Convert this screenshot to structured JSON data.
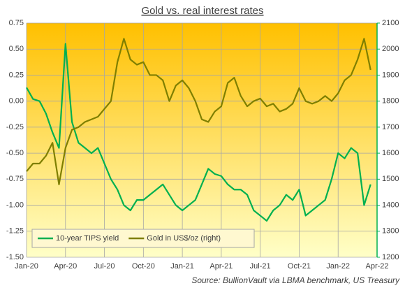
{
  "chart_data": {
    "type": "line",
    "title": "Gold vs. real interest rates",
    "source": "Source: BullionVault via LBMA benchmark, US Treasury",
    "x": [
      0,
      0.5,
      1,
      1.5,
      2,
      2.5,
      3,
      3.5,
      4,
      4.5,
      5,
      5.5,
      6,
      6.5,
      7,
      7.5,
      8,
      8.5,
      9,
      9.5,
      10,
      10.5,
      11,
      11.5,
      12,
      12.5,
      13,
      13.5,
      14,
      14.5,
      15,
      15.5,
      16,
      16.5,
      17,
      17.5,
      18,
      18.5,
      19,
      19.5,
      20,
      20.5,
      21,
      21.5,
      22,
      22.5,
      23,
      23.5,
      24,
      24.5,
      25,
      25.5,
      26,
      26.5
    ],
    "xlim": [
      0,
      27
    ],
    "xticks": [
      {
        "value": 0,
        "label": "Jan-20"
      },
      {
        "value": 3,
        "label": "Apr-20"
      },
      {
        "value": 6,
        "label": "Jul-20"
      },
      {
        "value": 9,
        "label": "Oct-20"
      },
      {
        "value": 12,
        "label": "Jan-21"
      },
      {
        "value": 15,
        "label": "Apr-21"
      },
      {
        "value": 18,
        "label": "Jul-21"
      },
      {
        "value": 21,
        "label": "Oct-21"
      },
      {
        "value": 24,
        "label": "Jan-22"
      },
      {
        "value": 27,
        "label": "Apr-22"
      }
    ],
    "ylim": [
      -1.5,
      0.75
    ],
    "yticks": [
      {
        "value": -1.5,
        "label": "-1.50"
      },
      {
        "value": -1.25,
        "label": "-1.25"
      },
      {
        "value": -1,
        "label": "-1.00"
      },
      {
        "value": -0.75,
        "label": "-0.75"
      },
      {
        "value": -0.5,
        "label": "-0.50"
      },
      {
        "value": -0.25,
        "label": "-0.25"
      },
      {
        "value": 0,
        "label": "0.00"
      },
      {
        "value": 0.25,
        "label": "0.25"
      },
      {
        "value": 0.5,
        "label": "0.50"
      },
      {
        "value": 0.75,
        "label": "0.75"
      }
    ],
    "y2lim": [
      1200,
      2100
    ],
    "y2ticks": [
      1200,
      1300,
      1400,
      1500,
      1600,
      1700,
      1800,
      1900,
      2000,
      2100
    ],
    "grid": true,
    "legend": "bottom-left",
    "series": [
      {
        "name": "10-year TIPS yield",
        "color": "#00b050",
        "values": [
          0.13,
          0.02,
          0.0,
          -0.12,
          -0.3,
          -0.45,
          0.55,
          -0.2,
          -0.4,
          -0.45,
          -0.5,
          -0.45,
          -0.6,
          -0.75,
          -0.85,
          -1.0,
          -1.05,
          -0.95,
          -0.95,
          -0.9,
          -0.85,
          -0.8,
          -0.9,
          -1.0,
          -1.05,
          -1.0,
          -0.95,
          -0.8,
          -0.65,
          -0.7,
          -0.72,
          -0.8,
          -0.85,
          -0.85,
          -0.9,
          -1.05,
          -1.1,
          -1.15,
          -1.05,
          -1.0,
          -0.9,
          -0.95,
          -0.85,
          -1.1,
          -1.05,
          -1.0,
          -0.95,
          -0.75,
          -0.5,
          -0.55,
          -0.45,
          -0.5,
          -1.0,
          -0.8
        ]
      },
      {
        "name": "Gold in US$/oz (right)",
        "color": "#7f7f00",
        "axis": "y2",
        "values": [
          1530,
          1560,
          1560,
          1590,
          1640,
          1480,
          1620,
          1690,
          1700,
          1720,
          1730,
          1740,
          1770,
          1800,
          1950,
          2040,
          1960,
          1940,
          1950,
          1900,
          1900,
          1880,
          1800,
          1860,
          1880,
          1850,
          1800,
          1730,
          1720,
          1760,
          1780,
          1870,
          1890,
          1820,
          1780,
          1800,
          1810,
          1780,
          1790,
          1760,
          1770,
          1790,
          1850,
          1800,
          1790,
          1800,
          1820,
          1800,
          1830,
          1880,
          1900,
          1960,
          2040,
          1920
        ]
      }
    ]
  }
}
